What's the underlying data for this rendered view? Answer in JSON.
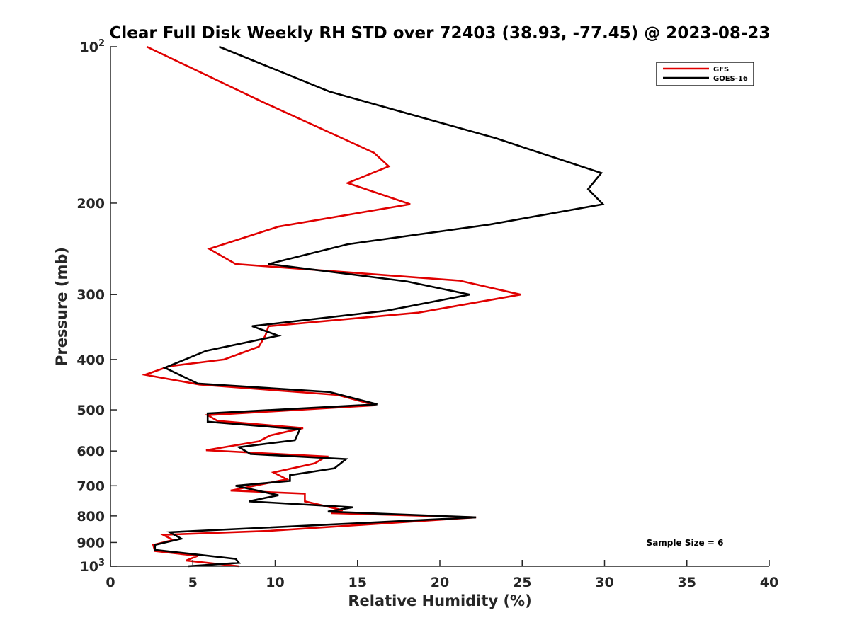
{
  "chart_data": {
    "type": "line",
    "title": "Clear Full Disk Weekly RH STD over 72403 (38.93, -77.45) @ 2023-08-23",
    "xlabel": "Relative Humidity (%)",
    "ylabel": "Pressure (mb)",
    "xlim": [
      0,
      40
    ],
    "ylim": [
      100,
      1000
    ],
    "yscale": "log",
    "y_reversed": true,
    "grid": false,
    "legend_position": "top-right",
    "xticks": [
      0,
      5,
      10,
      15,
      20,
      25,
      30,
      35,
      40
    ],
    "xtick_labels": [
      "0",
      "5",
      "10",
      "15",
      "20",
      "25",
      "30",
      "35",
      "40"
    ],
    "yticks": [
      100,
      200,
      300,
      400,
      500,
      600,
      700,
      800,
      900,
      1000
    ],
    "ytick_labels": [
      {
        "base": "10",
        "exp": "2"
      },
      {
        "base": "200",
        "exp": ""
      },
      {
        "base": "300",
        "exp": ""
      },
      {
        "base": "400",
        "exp": ""
      },
      {
        "base": "500",
        "exp": ""
      },
      {
        "base": "600",
        "exp": ""
      },
      {
        "base": "700",
        "exp": ""
      },
      {
        "base": "800",
        "exp": ""
      },
      {
        "base": "900",
        "exp": ""
      },
      {
        "base": "10",
        "exp": "3"
      }
    ],
    "annotation": "Sample Size = 6",
    "series": [
      {
        "name": "GFS",
        "color": "#e00000",
        "x": [
          2.2,
          9.3,
          16.0,
          16.9,
          14.4,
          18.2,
          10.2,
          6.0,
          7.6,
          21.2,
          24.9,
          18.7,
          9.6,
          9.4,
          9.0,
          6.9,
          3.6,
          2.1,
          5.4,
          13.8,
          16.1,
          5.9,
          6.5,
          11.7,
          9.7,
          9.0,
          5.8,
          13.1,
          12.4,
          9.9,
          10.7,
          7.3,
          11.8,
          11.8,
          14.1,
          13.4,
          22.2,
          9.6,
          3.2,
          3.8,
          2.6,
          2.7,
          5.3,
          4.6,
          7.8
        ],
        "y": [
          100,
          128,
          160,
          170,
          183,
          201,
          222,
          245,
          262,
          282,
          300,
          325,
          345,
          360,
          378,
          400,
          412,
          428,
          447,
          468,
          490,
          512,
          525,
          542,
          560,
          575,
          598,
          615,
          634,
          660,
          680,
          715,
          725,
          750,
          780,
          790,
          805,
          855,
          870,
          890,
          910,
          935,
          955,
          975,
          1000
        ]
      },
      {
        "name": "GOES-16",
        "color": "#000000",
        "x": [
          6.6,
          13.3,
          23.4,
          29.8,
          29.0,
          29.9,
          23.0,
          14.4,
          9.6,
          18.0,
          21.8,
          16.8,
          8.6,
          10.2,
          5.8,
          3.3,
          5.3,
          13.3,
          16.2,
          5.9,
          5.9,
          11.5,
          11.2,
          7.8,
          8.5,
          14.3,
          13.6,
          10.9,
          10.9,
          7.6,
          10.2,
          8.4,
          14.7,
          13.2,
          22.2,
          13.8,
          3.6,
          4.3,
          2.7,
          2.7,
          7.6,
          7.8,
          4.7
        ],
        "y": [
          100,
          122,
          150,
          175,
          188,
          201,
          220,
          240,
          262,
          283,
          300,
          322,
          345,
          360,
          385,
          415,
          445,
          462,
          488,
          508,
          527,
          545,
          572,
          590,
          608,
          622,
          648,
          668,
          685,
          700,
          730,
          750,
          770,
          785,
          805,
          830,
          860,
          885,
          910,
          930,
          968,
          985,
          1000
        ]
      }
    ]
  }
}
